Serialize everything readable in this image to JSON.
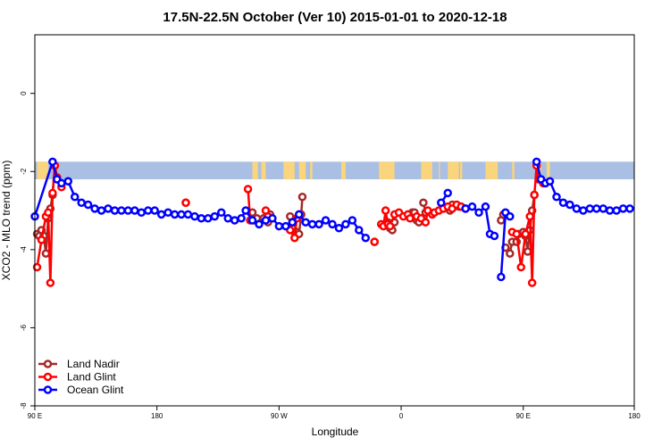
{
  "chart_data": {
    "type": "line",
    "title": "17.5N-22.5N October (Ver 10)   2015-01-01 to 2020-12-18",
    "xlabel": "Longitude",
    "ylabel": "XCO2 - MLO trend (ppm)",
    "xlim": [
      -90,
      180
    ],
    "ylim": [
      -8,
      1.5
    ],
    "x_ticks": [
      {
        "value": -90,
        "label": "90 E"
      },
      {
        "value": -35,
        "label": "180"
      },
      {
        "value": 20,
        "label": "90 W"
      },
      {
        "value": 75,
        "label": "0"
      },
      {
        "value": 130,
        "label": "90 E"
      },
      {
        "value": 180,
        "label": "180"
      }
    ],
    "y_ticks": [
      {
        "value": 0,
        "label": "0"
      },
      {
        "value": -2,
        "label": "-2"
      },
      {
        "value": -4,
        "label": "-4"
      },
      {
        "value": -6,
        "label": "-6"
      },
      {
        "value": -8,
        "label": "-8"
      }
    ],
    "land_mask": {
      "y_range": [
        -2.2,
        -1.75
      ],
      "ocean_color": "#a9bfe3",
      "land_color": "#fad57d",
      "land_spans": [
        [
          -89,
          -84
        ],
        [
          8,
          10.5
        ],
        [
          12,
          14
        ],
        [
          22,
          27
        ],
        [
          29,
          32
        ],
        [
          34,
          35
        ],
        [
          48,
          50
        ],
        [
          65,
          72
        ],
        [
          84,
          89
        ],
        [
          92,
          92.5
        ],
        [
          96,
          101
        ],
        [
          101.5,
          102.5
        ],
        [
          113,
          118.5
        ],
        [
          125,
          126
        ],
        [
          136,
          138
        ],
        [
          140.5,
          142
        ]
      ]
    },
    "legend": {
      "position": "bottom-left"
    },
    "series": [
      {
        "name": "Land Nadir",
        "color": "#a52a2a",
        "segments": [
          [
            [
              -89,
              -3.6
            ],
            [
              -88,
              -3.65
            ],
            [
              -87,
              -3.5
            ],
            [
              -86,
              -3.65
            ],
            [
              -85,
              -4.1
            ],
            [
              -84,
              -3.2
            ],
            [
              -83,
              -2.95
            ],
            [
              -82,
              -2.6
            ],
            [
              -81,
              -1.85
            ]
          ],
          [
            [
              -22,
              -2.8
            ]
          ],
          [
            [
              8,
              -3.05
            ],
            [
              9,
              -3.25
            ],
            [
              10,
              -3.2
            ]
          ],
          [
            [
              13,
              -3.2
            ],
            [
              15,
              -3.3
            ],
            [
              16,
              -3.1
            ]
          ],
          [
            [
              25,
              -3.15
            ],
            [
              26,
              -3.45
            ],
            [
              27,
              -3.55
            ],
            [
              28,
              -3.55
            ],
            [
              29,
              -3.6
            ],
            [
              30,
              -3.1
            ],
            [
              30.5,
              -2.65
            ]
          ],
          [
            [
              63,
              -3.8
            ]
          ],
          [
            [
              68,
              -3.35
            ],
            [
              69,
              -3.3
            ],
            [
              70,
              -3.45
            ],
            [
              71,
              -3.5
            ],
            [
              72,
              -3.3
            ]
          ],
          [
            [
              79,
              -3.15
            ],
            [
              80,
              -3.05
            ],
            [
              81,
              -3.05
            ],
            [
              82,
              -3.25
            ],
            [
              83,
              -3.3
            ]
          ],
          [
            [
              85,
              -2.8
            ],
            [
              86,
              -3.05
            ]
          ],
          [
            [
              97,
              -3.0
            ],
            [
              98,
              -2.85
            ]
          ],
          [
            [
              101,
              -2.9
            ],
            [
              102,
              -2.9
            ]
          ],
          [
            [
              120,
              -3.25
            ],
            [
              121,
              -3.1
            ]
          ],
          [
            [
              122,
              -3.95
            ],
            [
              124,
              -4.1
            ],
            [
              125,
              -3.8
            ]
          ],
          [
            [
              127,
              -3.8
            ],
            [
              128,
              -3.6
            ]
          ],
          [
            [
              130,
              -3.55
            ],
            [
              131,
              -3.65
            ],
            [
              132,
              -4.05
            ],
            [
              133,
              -3.5
            ],
            [
              134,
              -3.0
            ],
            [
              135,
              -2.6
            ]
          ]
        ]
      },
      {
        "name": "Land Glint",
        "color": "#ff0000",
        "segments": [
          [
            [
              -89,
              -4.45
            ],
            [
              -87,
              -3.75
            ],
            [
              -85,
              -3.15
            ],
            [
              -84,
              -3.05
            ],
            [
              -83,
              -4.85
            ],
            [
              -82,
              -2.55
            ],
            [
              -81,
              -1.85
            ],
            [
              -80,
              -2.15
            ],
            [
              -78,
              -2.4
            ]
          ],
          [
            [
              -22,
              -2.8
            ]
          ],
          [
            [
              6,
              -2.45
            ],
            [
              7,
              -3.25
            ]
          ],
          [
            [
              14,
              -3.0
            ],
            [
              15,
              -3.15
            ]
          ],
          [
            [
              25,
              -3.5
            ],
            [
              27,
              -3.7
            ],
            [
              28,
              -3.2
            ],
            [
              29,
              -3.1
            ]
          ],
          [
            [
              63,
              -3.8
            ]
          ],
          [
            [
              66,
              -3.35
            ],
            [
              67,
              -3.4
            ],
            [
              68,
              -3.0
            ],
            [
              69,
              -3.35
            ],
            [
              70,
              -3.4
            ],
            [
              72,
              -3.1
            ],
            [
              74,
              -3.05
            ],
            [
              76,
              -3.15
            ],
            [
              78,
              -3.1
            ],
            [
              79,
              -3.2
            ],
            [
              82,
              -3.15
            ],
            [
              84,
              -3.2
            ],
            [
              86,
              -3.3
            ],
            [
              87,
              -3.0
            ],
            [
              89,
              -3.1
            ],
            [
              90,
              -3.05
            ],
            [
              92,
              -3.0
            ],
            [
              94,
              -2.95
            ],
            [
              96,
              -2.9
            ],
            [
              98,
              -2.95
            ],
            [
              100,
              -2.85
            ],
            [
              102,
              -2.9
            ],
            [
              104,
              -2.95
            ]
          ],
          [
            [
              125,
              -3.55
            ],
            [
              127,
              -3.6
            ],
            [
              129,
              -4.45
            ],
            [
              131,
              -3.6
            ],
            [
              133,
              -3.15
            ],
            [
              134,
              -4.85
            ],
            [
              135,
              -2.6
            ],
            [
              136,
              -1.85
            ],
            [
              137,
              -2.2
            ],
            [
              139,
              -2.3
            ]
          ]
        ]
      },
      {
        "name": "Ocean Glint",
        "color": "#0000ff",
        "segments": [
          [
            [
              -90,
              -3.15
            ],
            [
              -82,
              -1.75
            ],
            [
              -80,
              -2.2
            ],
            [
              -78,
              -2.3
            ],
            [
              -75,
              -2.25
            ],
            [
              -72,
              -2.65
            ],
            [
              -69,
              -2.8
            ],
            [
              -66,
              -2.85
            ],
            [
              -63,
              -2.95
            ],
            [
              -60,
              -3.0
            ],
            [
              -57,
              -2.95
            ],
            [
              -54,
              -3.0
            ],
            [
              -51,
              -3.0
            ],
            [
              -48,
              -3.0
            ],
            [
              -45,
              -3.0
            ],
            [
              -42,
              -3.05
            ],
            [
              -39,
              -3.0
            ],
            [
              -36,
              -3.0
            ],
            [
              -33,
              -3.1
            ],
            [
              -30,
              -3.05
            ],
            [
              -27,
              -3.1
            ],
            [
              -24,
              -3.1
            ],
            [
              -21,
              -3.1
            ],
            [
              -18,
              -3.15
            ],
            [
              -15,
              -3.2
            ],
            [
              -12,
              -3.2
            ],
            [
              -9,
              -3.15
            ],
            [
              -6,
              -3.05
            ],
            [
              -3,
              -3.2
            ],
            [
              0,
              -3.25
            ],
            [
              3,
              -3.2
            ],
            [
              5,
              -3.0
            ],
            [
              8,
              -3.25
            ],
            [
              11,
              -3.35
            ],
            [
              14,
              -3.25
            ],
            [
              17,
              -3.2
            ],
            [
              20,
              -3.4
            ],
            [
              23,
              -3.4
            ],
            [
              26,
              -3.3
            ],
            [
              29,
              -3.1
            ],
            [
              32,
              -3.3
            ],
            [
              35,
              -3.35
            ],
            [
              38,
              -3.35
            ],
            [
              41,
              -3.25
            ],
            [
              44,
              -3.35
            ],
            [
              47,
              -3.45
            ],
            [
              50,
              -3.35
            ],
            [
              53,
              -3.25
            ],
            [
              56,
              -3.5
            ],
            [
              59,
              -3.7
            ]
          ],
          [
            [
              93,
              -2.8
            ],
            [
              96,
              -2.55
            ]
          ],
          [
            [
              104,
              -2.95
            ],
            [
              107,
              -2.9
            ],
            [
              110,
              -3.05
            ],
            [
              113,
              -2.9
            ],
            [
              115,
              -3.6
            ],
            [
              117,
              -3.65
            ]
          ],
          [
            [
              120,
              -4.7
            ],
            [
              122,
              -3.05
            ],
            [
              124,
              -3.15
            ]
          ],
          [
            [
              136,
              -1.75
            ],
            [
              138,
              -2.2
            ],
            [
              140,
              -2.3
            ],
            [
              142,
              -2.25
            ],
            [
              145,
              -2.65
            ],
            [
              148,
              -2.8
            ],
            [
              151,
              -2.85
            ],
            [
              154,
              -2.95
            ],
            [
              157,
              -3.0
            ],
            [
              160,
              -2.95
            ],
            [
              163,
              -2.95
            ],
            [
              166,
              -2.95
            ],
            [
              169,
              -3.0
            ],
            [
              172,
              -3.0
            ],
            [
              175,
              -2.95
            ],
            [
              178,
              -2.95
            ]
          ]
        ]
      }
    ]
  }
}
